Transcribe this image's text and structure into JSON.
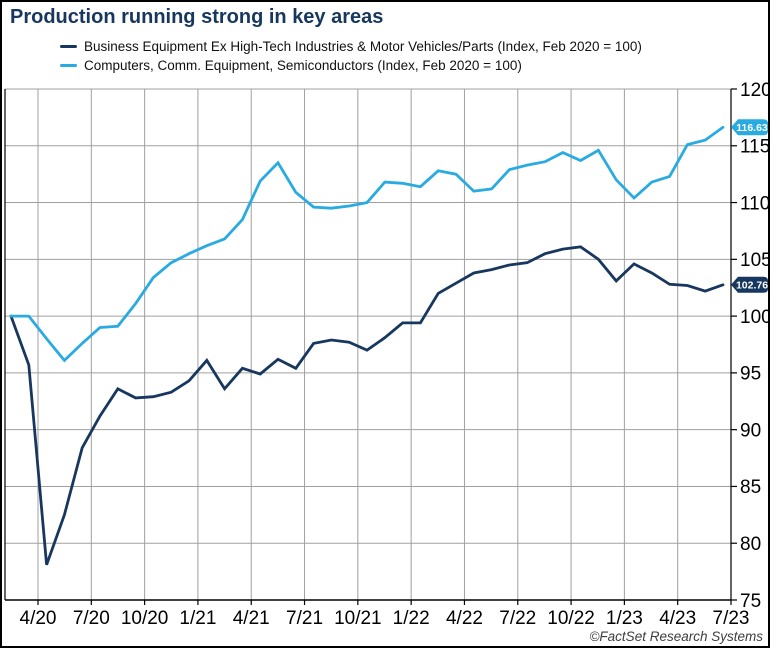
{
  "header": {
    "title": "Production running strong in key areas"
  },
  "footer": {
    "credit": "©FactSet Research Systems"
  },
  "chart_data": {
    "type": "line",
    "title": "Production running strong in key areas",
    "grid": true,
    "legend_position": "top-left",
    "y_axis_side": "right",
    "ylim": [
      75,
      120
    ],
    "y_ticks": [
      120,
      115,
      110,
      105,
      100,
      95,
      90,
      85,
      80,
      75
    ],
    "x_tick_labels": [
      "4/20",
      "7/20",
      "10/20",
      "1/21",
      "4/21",
      "7/21",
      "10/21",
      "1/22",
      "4/22",
      "7/22",
      "10/22",
      "1/23",
      "4/23",
      "7/23"
    ],
    "months": [
      "Feb 2020",
      "Mar 2020",
      "Apr 2020",
      "May 2020",
      "Jun 2020",
      "Jul 2020",
      "Aug 2020",
      "Sep 2020",
      "Oct 2020",
      "Nov 2020",
      "Dec 2020",
      "Jan 2021",
      "Feb 2021",
      "Mar 2021",
      "Apr 2021",
      "May 2021",
      "Jun 2021",
      "Jul 2021",
      "Aug 2021",
      "Sep 2021",
      "Oct 2021",
      "Nov 2021",
      "Dec 2021",
      "Jan 2022",
      "Feb 2022",
      "Mar 2022",
      "Apr 2022",
      "May 2022",
      "Jun 2022",
      "Jul 2022",
      "Aug 2022",
      "Sep 2022",
      "Oct 2022",
      "Nov 2022",
      "Dec 2022",
      "Jan 2023",
      "Feb 2023",
      "Mar 2023",
      "Apr 2023",
      "May 2023",
      "Jun 2023"
    ],
    "series": [
      {
        "name": "Business Equipment Ex High-Tech Industries & Motor Vehicles/Parts (Index, Feb 2020 = 100)",
        "color": "#17375e",
        "end_label": "102.76",
        "values": [
          100.0,
          95.7,
          78.1,
          82.5,
          88.4,
          91.2,
          93.6,
          92.8,
          92.9,
          93.3,
          94.3,
          96.1,
          93.6,
          95.4,
          94.9,
          96.2,
          95.4,
          97.6,
          97.9,
          97.7,
          97.0,
          98.1,
          99.4,
          99.4,
          102.0,
          102.9,
          103.8,
          104.1,
          104.5,
          104.7,
          105.5,
          105.9,
          106.1,
          105.0,
          103.1,
          104.6,
          103.8,
          102.8,
          102.7,
          102.2,
          102.76
        ]
      },
      {
        "name": "Computers, Comm. Equipment, Semiconductors (Index, Feb 2020 = 100)",
        "color": "#29abe2",
        "end_label": "116.63",
        "values": [
          100.0,
          100.0,
          98.0,
          96.1,
          97.6,
          99.0,
          99.1,
          101.1,
          103.4,
          104.7,
          105.5,
          106.2,
          106.8,
          108.5,
          111.9,
          113.5,
          110.9,
          109.6,
          109.5,
          109.7,
          110.0,
          111.8,
          111.7,
          111.4,
          112.8,
          112.5,
          111.0,
          111.2,
          112.9,
          113.3,
          113.6,
          114.4,
          113.7,
          114.6,
          112.0,
          110.4,
          111.8,
          112.3,
          115.1,
          115.5,
          116.63
        ]
      }
    ],
    "colors": {
      "grid": "#a0a0a0",
      "axis": "#000000",
      "label_text": "#000000"
    },
    "footer": "©FactSet Research Systems"
  }
}
